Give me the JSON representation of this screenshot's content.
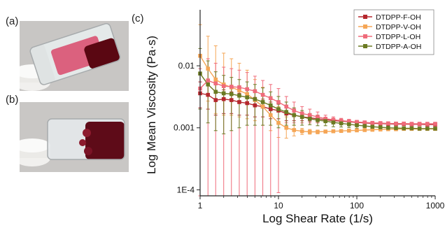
{
  "panels": {
    "a_label": "(a)",
    "b_label": "(b)",
    "c_label": "(c)"
  },
  "photos": {
    "a": {
      "background": "#c8c6c4",
      "liquid": "#5a0712",
      "foam": "#d8335a"
    },
    "b": {
      "background": "#c9c7c5",
      "liquid": "#5e0b18",
      "foam": "#8c1b2e"
    }
  },
  "chart_data": {
    "type": "line",
    "xlabel": "Log Shear Rate (1/s)",
    "ylabel": "Log Mean Viscosity (Pa·s)",
    "x_scale": "log",
    "y_scale": "log",
    "xlim": [
      1,
      1000
    ],
    "ylim": [
      8e-05,
      0.08
    ],
    "x_ticks": [
      1,
      10,
      100,
      1000
    ],
    "x_tick_labels": [
      "1",
      "10",
      "100",
      "1000"
    ],
    "y_ticks": [
      0.0001,
      0.001,
      0.01
    ],
    "y_tick_labels": [
      "1E-4",
      "0.001",
      "0.01"
    ],
    "legend_position": "top-right",
    "series": [
      {
        "name": "DTDPP-F-OH",
        "color": "#b5272d",
        "marker": "square",
        "x": [
          1,
          1.26,
          1.58,
          2,
          2.51,
          3.16,
          3.98,
          5.01,
          6.31,
          7.94,
          10,
          12.6,
          15.8,
          20,
          25.1,
          31.6,
          39.8,
          50.1,
          63.1,
          79.4,
          100,
          126,
          158,
          200,
          251,
          316,
          398,
          501,
          631,
          794,
          1000
        ],
        "y": [
          0.0036,
          0.0034,
          0.0028,
          0.0029,
          0.0028,
          0.0026,
          0.0025,
          0.0023,
          0.0022,
          0.002,
          0.0019,
          0.0017,
          0.0016,
          0.0015,
          0.00145,
          0.0014,
          0.00135,
          0.0013,
          0.00128,
          0.00125,
          0.00122,
          0.0012,
          0.00118,
          0.00117,
          0.00116,
          0.00115,
          0.00115,
          0.00114,
          0.00114,
          0.00113,
          0.00113
        ],
        "err_hi": [
          0.0055,
          0.005,
          0.004,
          0.0041,
          0.0038,
          0.0036,
          0.0034,
          0.0031,
          0.0029,
          0.0026,
          0.0024,
          0.0021,
          0.0019,
          0.0017,
          0.00162,
          0.00155,
          0.00148,
          0.00142,
          0.00138,
          0.00134,
          0.0013,
          0.00127,
          0.00124,
          0.00122,
          0.00121,
          0.0012,
          0.00119,
          0.00118,
          0.00118,
          0.00117,
          0.00117
        ],
        "err_lo": [
          0.0021,
          0.002,
          0.0016,
          0.0017,
          0.0017,
          0.0016,
          0.0016,
          0.0015,
          0.0015,
          0.0014,
          0.0014,
          0.0013,
          0.0013,
          0.0013,
          0.00128,
          0.00125,
          0.00122,
          0.00118,
          0.00118,
          0.00116,
          0.00114,
          0.00113,
          0.00112,
          0.00112,
          0.00111,
          0.0011,
          0.0011,
          0.0011,
          0.0011,
          0.00109,
          0.00109
        ]
      },
      {
        "name": "DTDPP-V-OH",
        "color": "#f5a656",
        "marker": "square",
        "x": [
          1,
          1.26,
          1.58,
          2,
          2.51,
          3.16,
          3.98,
          5.01,
          6.31,
          7.94,
          10,
          12.6,
          15.8,
          20,
          25.1,
          31.6,
          39.8,
          50.1,
          63.1,
          79.4,
          100,
          126,
          158,
          200,
          251,
          316,
          398,
          501,
          631,
          794,
          1000
        ],
        "y": [
          0.0145,
          0.009,
          0.006,
          0.005,
          0.0045,
          0.004,
          0.0035,
          0.0028,
          0.0022,
          0.0016,
          0.0012,
          0.001,
          0.00092,
          0.00088,
          0.00086,
          0.00086,
          0.00087,
          0.00088,
          0.00089,
          0.0009,
          0.00091,
          0.00092,
          0.00093,
          0.00094,
          0.00095,
          0.00095,
          0.00096,
          0.00096,
          0.00096,
          0.00096,
          0.00096
        ],
        "err_hi": [
          0.046,
          0.03,
          0.021,
          0.016,
          0.013,
          0.011,
          0.0085,
          0.006,
          0.0045,
          0.0032,
          0.0022,
          0.0015,
          0.0011,
          0.00098,
          0.00094,
          0.00092,
          0.00092,
          0.00092,
          0.00093,
          0.00093,
          0.00094,
          0.00095,
          0.00096,
          0.00097,
          0.00098,
          0.00098,
          0.00099,
          0.00099,
          0.00099,
          0.00099,
          0.00099
        ],
        "err_lo": [
          0.0045,
          0.0027,
          0.0017,
          0.0016,
          0.0016,
          0.0015,
          0.0014,
          0.0013,
          0.0011,
          0.0009,
          0.0007,
          0.00068,
          0.00074,
          0.00078,
          0.00079,
          0.0008,
          0.00082,
          0.00084,
          0.00085,
          0.00087,
          0.00088,
          0.00089,
          0.0009,
          0.00091,
          0.00092,
          0.00092,
          0.00093,
          0.00093,
          0.00093,
          0.00093,
          0.00093
        ]
      },
      {
        "name": "DTDPP-L-OH",
        "color": "#ef6b7a",
        "marker": "square",
        "x": [
          1,
          1.26,
          1.58,
          2,
          2.51,
          3.16,
          3.98,
          5.01,
          6.31,
          7.94,
          10,
          12.6,
          15.8,
          20,
          25.1,
          31.6,
          39.8,
          50.1,
          63.1,
          79.4,
          100,
          126,
          158,
          200,
          251,
          316,
          398,
          501,
          631,
          794,
          1000
        ],
        "y": [
          0.0043,
          0.0058,
          0.0052,
          0.0047,
          0.0046,
          0.0045,
          0.0042,
          0.0039,
          0.0034,
          0.003,
          0.0026,
          0.0022,
          0.0019,
          0.0017,
          0.0016,
          0.0015,
          0.0014,
          0.00135,
          0.0013,
          0.00127,
          0.00124,
          0.00122,
          0.0012,
          0.00119,
          0.00118,
          0.00117,
          0.00117,
          0.00116,
          0.00116,
          0.00116,
          0.00116
        ],
        "err_hi": [
          0.009,
          0.013,
          0.011,
          0.0095,
          0.009,
          0.0085,
          0.0078,
          0.0068,
          0.0058,
          0.005,
          0.0043,
          0.0032,
          0.0026,
          0.0022,
          0.002,
          0.0018,
          0.0016,
          0.0015,
          0.00142,
          0.00137,
          0.00132,
          0.00129,
          0.00126,
          0.00124,
          0.00122,
          0.00121,
          0.0012,
          0.00119,
          0.00119,
          0.00119,
          0.00119
        ],
        "err_lo": [
          8e-05,
          8e-05,
          8e-05,
          8e-05,
          8e-05,
          8e-05,
          8e-05,
          8e-05,
          8e-05,
          8e-05,
          9e-05,
          0.0012,
          0.0012,
          0.0012,
          0.0012,
          0.0012,
          0.00122,
          0.0012,
          0.00118,
          0.00117,
          0.00116,
          0.00115,
          0.00114,
          0.00114,
          0.00114,
          0.00113,
          0.00114,
          0.00113,
          0.00113,
          0.00113,
          0.00113
        ]
      },
      {
        "name": "DTDPP-A-OH",
        "color": "#6b7a22",
        "marker": "square",
        "x": [
          1,
          1.26,
          1.58,
          2,
          2.51,
          3.16,
          3.98,
          5.01,
          6.31,
          7.94,
          10,
          12.6,
          15.8,
          20,
          25.1,
          31.6,
          39.8,
          50.1,
          63.1,
          79.4,
          100,
          126,
          158,
          200,
          251,
          316,
          398,
          501,
          631,
          794,
          1000
        ],
        "y": [
          0.0075,
          0.005,
          0.0038,
          0.0036,
          0.0035,
          0.0033,
          0.0031,
          0.0029,
          0.0026,
          0.0023,
          0.002,
          0.0018,
          0.0016,
          0.0015,
          0.0014,
          0.00133,
          0.00128,
          0.00122,
          0.00118,
          0.00114,
          0.0011,
          0.00107,
          0.00104,
          0.00102,
          0.001,
          0.00099,
          0.00098,
          0.00098,
          0.00097,
          0.00097,
          0.00097
        ],
        "err_hi": [
          0.019,
          0.012,
          0.008,
          0.007,
          0.0065,
          0.006,
          0.0055,
          0.005,
          0.0044,
          0.0038,
          0.0032,
          0.0026,
          0.0021,
          0.0019,
          0.0017,
          0.0016,
          0.00148,
          0.0014,
          0.00133,
          0.00127,
          0.00122,
          0.00117,
          0.00113,
          0.0011,
          0.00107,
          0.00105,
          0.00104,
          0.00103,
          0.00102,
          0.00102,
          0.00102
        ],
        "err_lo": [
          0.002,
          0.0012,
          0.0009,
          0.0008,
          0.0009,
          0.001,
          0.0011,
          0.0011,
          0.0011,
          0.0011,
          0.001,
          0.0011,
          0.0011,
          0.0011,
          0.00112,
          0.00108,
          0.00108,
          0.00104,
          0.00103,
          0.00101,
          0.00098,
          0.00097,
          0.00095,
          0.00094,
          0.00093,
          0.00093,
          0.00092,
          0.00093,
          0.00092,
          0.00092,
          0.00092
        ]
      }
    ]
  }
}
